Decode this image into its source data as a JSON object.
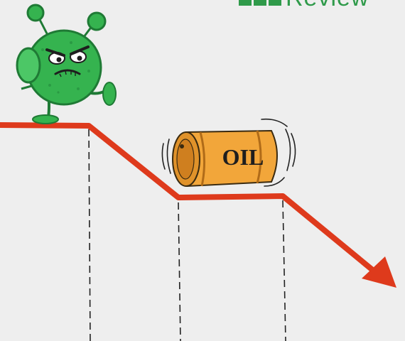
{
  "brand": {
    "logo_word": "Review",
    "color": "#2f9a4a"
  },
  "barrel": {
    "label": "OIL",
    "color": "#f2a63a"
  },
  "virus": {
    "color": "#35b34f"
  },
  "trend": {
    "color": "#de3a1c",
    "direction": "down"
  }
}
